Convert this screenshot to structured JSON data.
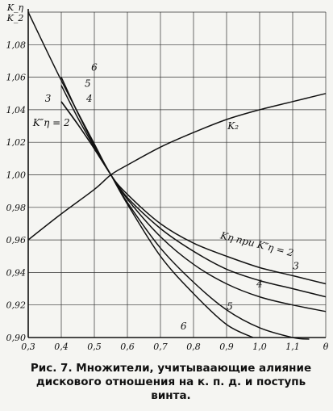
{
  "caption": "Рис. 7. Множители, учитываающие алияние дискового отношения на к. п. д. и поступь винта.",
  "chart_data": {
    "type": "line",
    "xlabel": "θ",
    "ylabel": "K_η / K_2",
    "xlim": [
      0.3,
      1.2
    ],
    "ylim": [
      0.9,
      1.1
    ],
    "x_ticks": [
      "0,3",
      "0,4",
      "0,5",
      "0,6",
      "0,7",
      "0,8",
      "0,9",
      "1,0",
      "1,1",
      "θ"
    ],
    "y_ticks": [
      "0,90",
      "0,92",
      "0,94",
      "0,96",
      "0,98",
      "1,00",
      "1,02",
      "1,04",
      "1,06",
      "1,08",
      "K_η / K_2"
    ],
    "grid": true,
    "series": [
      {
        "name": "K₂",
        "x": [
          0.3,
          0.4,
          0.5,
          0.55,
          0.6,
          0.7,
          0.8,
          0.9,
          1.0,
          1.1,
          1.2
        ],
        "values": [
          0.96,
          0.976,
          0.991,
          1.0,
          1.006,
          1.017,
          1.026,
          1.034,
          1.04,
          1.045,
          1.05
        ]
      },
      {
        "name": "Kη при K″η = 2",
        "x": [
          0.3,
          0.4,
          0.5,
          0.55,
          0.6,
          0.7,
          0.8,
          0.9,
          1.0,
          1.1,
          1.2
        ],
        "values": [
          1.1,
          1.058,
          1.019,
          1.0,
          0.988,
          0.97,
          0.958,
          0.95,
          0.943,
          0.938,
          0.933
        ]
      },
      {
        "name": "3",
        "x": [
          0.4,
          0.45,
          0.5,
          0.55,
          0.6,
          0.7,
          0.8,
          0.9,
          1.0,
          1.1,
          1.2
        ],
        "values": [
          1.045,
          1.031,
          1.016,
          1.0,
          0.986,
          0.967,
          0.953,
          0.942,
          0.935,
          0.93,
          0.925
        ]
      },
      {
        "name": "4",
        "x": [
          0.4,
          0.45,
          0.5,
          0.55,
          0.6,
          0.7,
          0.8,
          0.9,
          1.0,
          1.1,
          1.2
        ],
        "values": [
          1.045,
          1.031,
          1.016,
          1.0,
          0.985,
          0.962,
          0.945,
          0.933,
          0.925,
          0.92,
          0.916
        ]
      },
      {
        "name": "5",
        "x": [
          0.4,
          0.45,
          0.5,
          0.55,
          0.6,
          0.7,
          0.8,
          0.9,
          1.0,
          1.1,
          1.15
        ],
        "values": [
          1.055,
          1.035,
          1.017,
          1.0,
          0.983,
          0.955,
          0.934,
          0.917,
          0.906,
          0.9,
          0.899
        ]
      },
      {
        "name": "6",
        "x": [
          0.4,
          0.45,
          0.5,
          0.55,
          0.6,
          0.7,
          0.8,
          0.9,
          0.98
        ],
        "values": [
          1.06,
          1.038,
          1.018,
          1.0,
          0.982,
          0.95,
          0.927,
          0.908,
          0.9
        ]
      }
    ],
    "annotations": [
      {
        "text": "K₂",
        "x": 0.92,
        "y": 1.028
      },
      {
        "text": "Kη при K″η = 2",
        "x": 0.88,
        "y": 0.961
      },
      {
        "text": "3",
        "x": 1.11,
        "y": 0.942
      },
      {
        "text": "4",
        "x": 1.0,
        "y": 0.931
      },
      {
        "text": "5",
        "x": 0.91,
        "y": 0.917
      },
      {
        "text": "6",
        "x": 0.77,
        "y": 0.905
      },
      {
        "text": "6",
        "x": 0.5,
        "y": 1.064
      },
      {
        "text": "5",
        "x": 0.48,
        "y": 1.054
      },
      {
        "text": "4",
        "x": 0.485,
        "y": 1.045
      },
      {
        "text": "3",
        "x": 0.36,
        "y": 1.045
      },
      {
        "text": "K″η = 2",
        "x": 0.37,
        "y": 1.03
      }
    ]
  }
}
